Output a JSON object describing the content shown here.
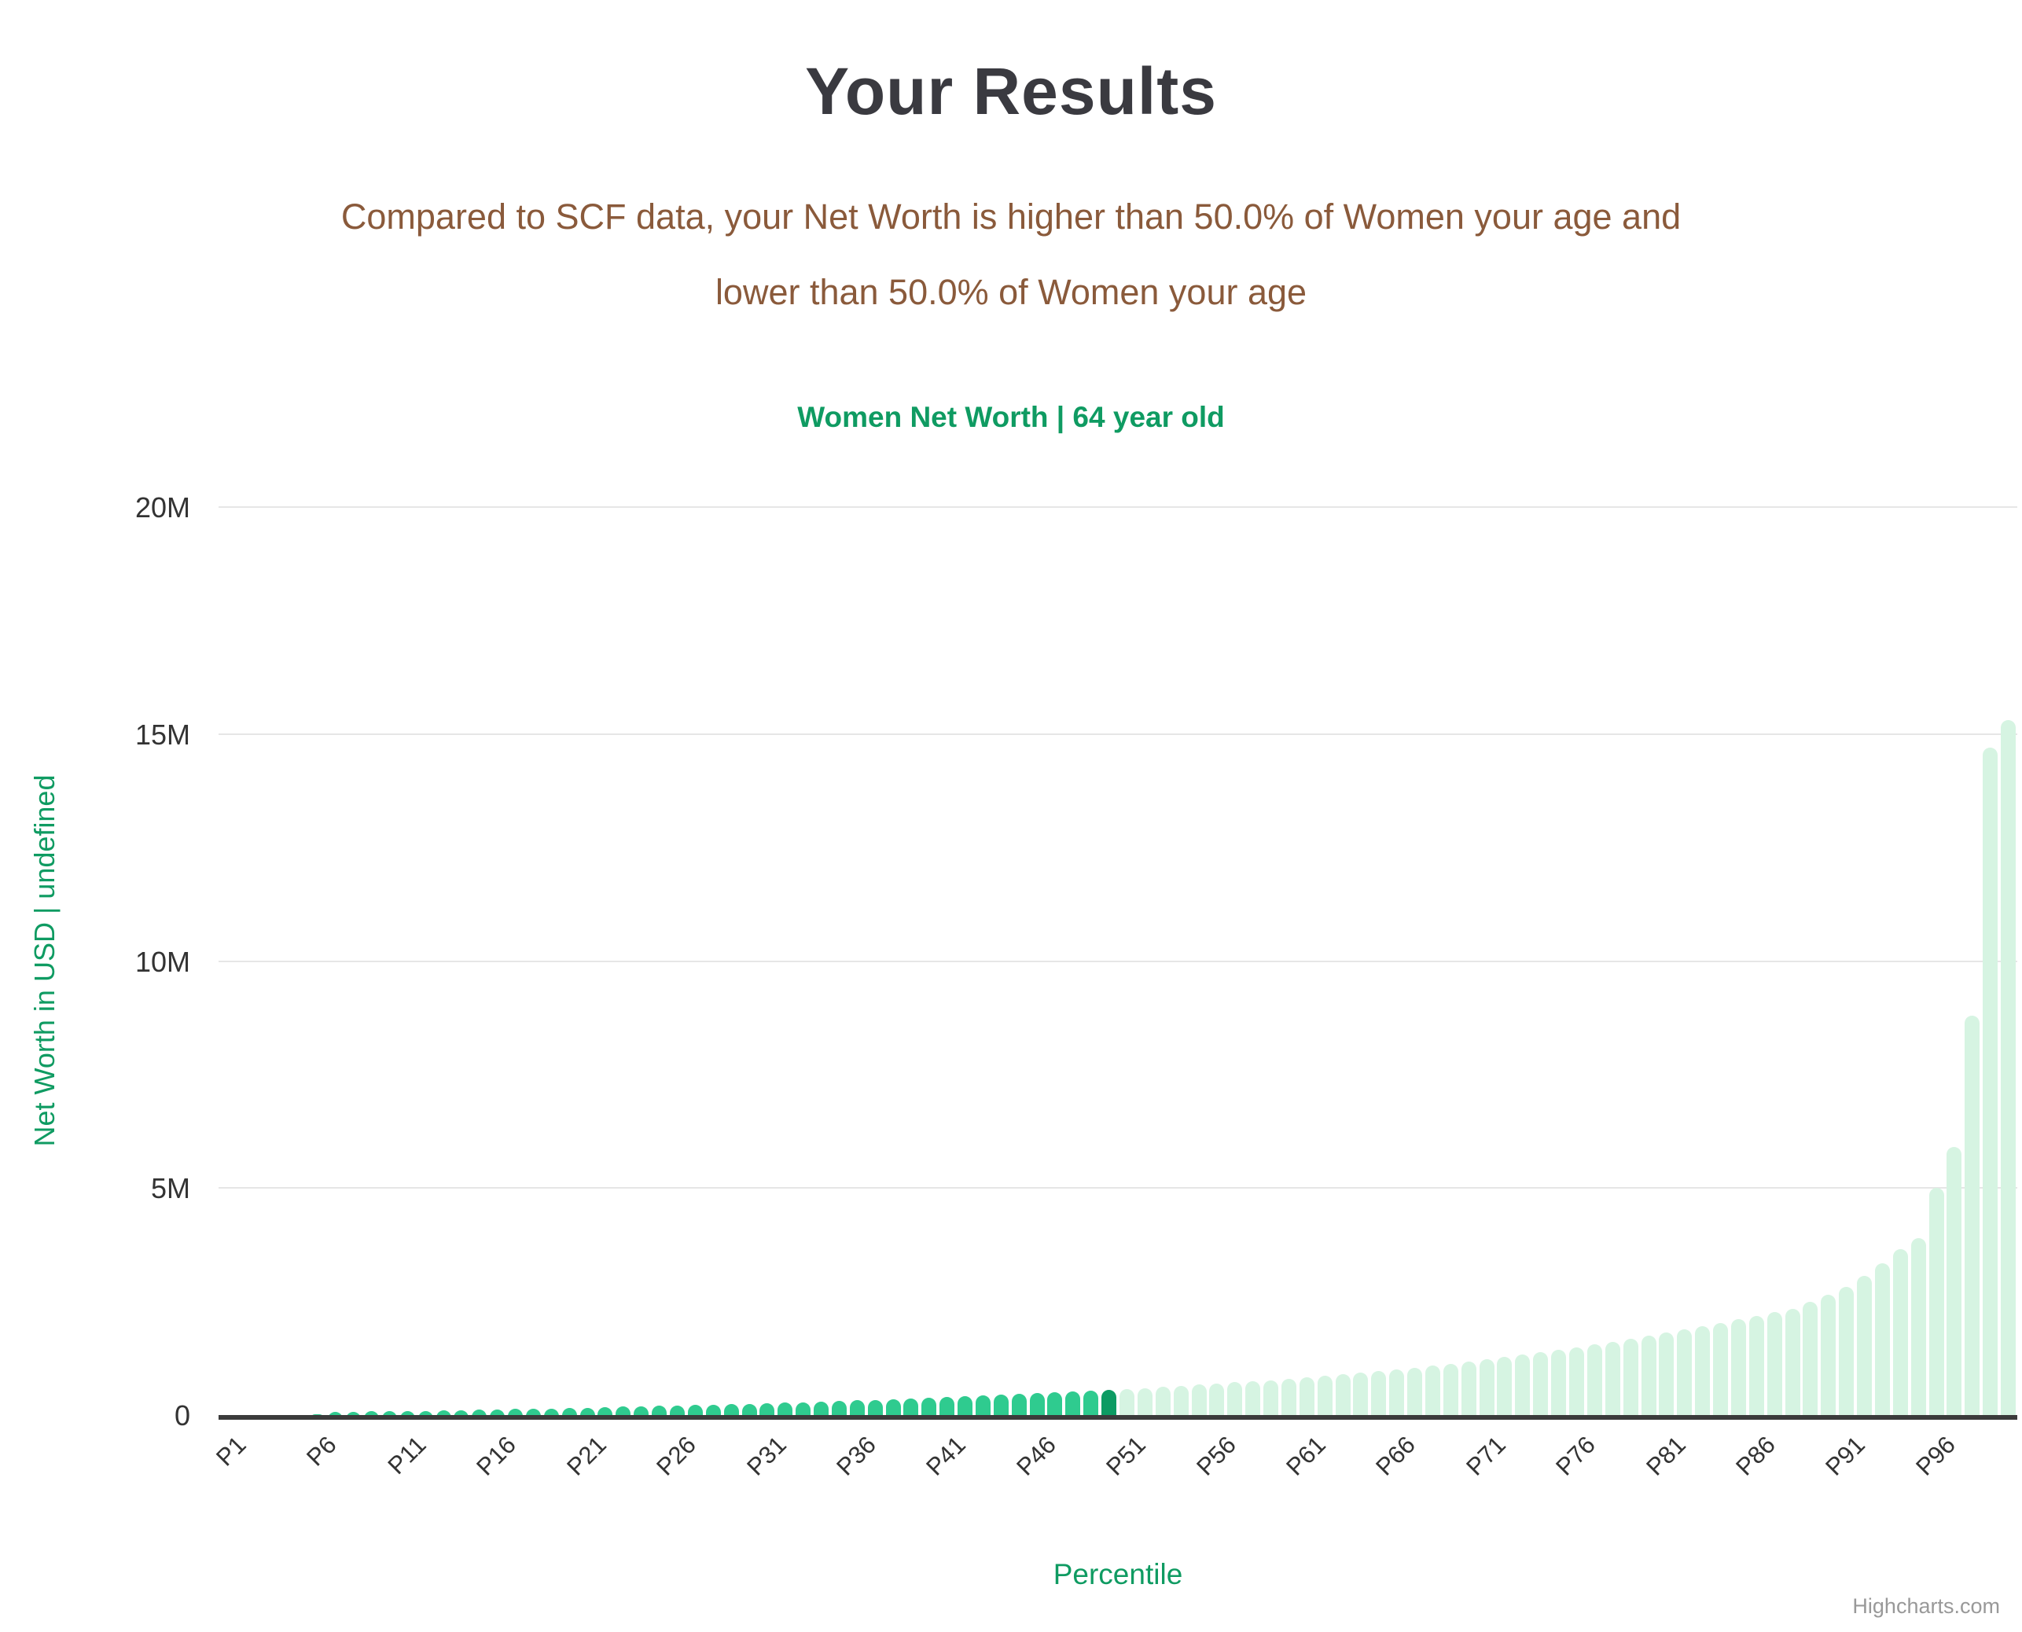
{
  "page": {
    "title": "Your Results",
    "subtitle_lines": [
      "Compared to SCF data, your Net Worth is higher than 50.0% of Women your age and",
      "lower than 50.0% of Women your age"
    ]
  },
  "chart": {
    "credits": "Highcharts.com"
  },
  "chart_data": {
    "type": "bar",
    "title": "Women Net Worth | 64 year old",
    "xlabel": "Percentile",
    "ylabel": "Net Worth in USD | undefined",
    "ylim": [
      0,
      20000000
    ],
    "grid": true,
    "legend": false,
    "yticks": [
      {
        "label": "0",
        "value": 0
      },
      {
        "label": "5M",
        "value": 5000000
      },
      {
        "label": "10M",
        "value": 10000000
      },
      {
        "label": "15M",
        "value": 15000000
      },
      {
        "label": "20M",
        "value": 20000000
      }
    ],
    "x_tick_labels": [
      "P1",
      "P6",
      "P11",
      "P16",
      "P21",
      "P26",
      "P31",
      "P36",
      "P41",
      "P46",
      "P51",
      "P56",
      "P61",
      "P66",
      "P71",
      "P76",
      "P81",
      "P86",
      "P91",
      "P96"
    ],
    "x_tick_step": 5,
    "category_prefix": "P",
    "values": [
      0,
      0,
      0,
      0,
      0,
      10000,
      70000,
      75000,
      80000,
      85000,
      90000,
      95000,
      100000,
      108000,
      116000,
      124000,
      132000,
      140000,
      148000,
      156000,
      165000,
      174000,
      183000,
      192000,
      201000,
      210000,
      220000,
      230000,
      240000,
      250000,
      262000,
      274000,
      286000,
      298000,
      310000,
      322000,
      336000,
      350000,
      364000,
      380000,
      396000,
      412000,
      428000,
      444000,
      460000,
      478000,
      496000,
      515000,
      535000,
      555000,
      575000,
      596000,
      618000,
      642000,
      668000,
      695000,
      722000,
      750000,
      770000,
      800000,
      830000,
      862000,
      895000,
      930000,
      966000,
      1004000,
      1044000,
      1086000,
      1130000,
      1176000,
      1224000,
      1274000,
      1326000,
      1380000,
      1436000,
      1494000,
      1554000,
      1616000,
      1680000,
      1746000,
      1814000,
      1884000,
      1956000,
      2030000,
      2106000,
      2184000,
      2264000,
      2346000,
      2500000,
      2650000,
      2820000,
      3060000,
      3350000,
      3650000,
      3900000,
      5000000,
      5900000,
      8800000,
      14700000,
      15300000
    ],
    "highlight_index": 49,
    "colors": {
      "below_median_bar": "#2fcb8f",
      "median_bar": "#0d9b63",
      "above_median_bar": "#d6f4e2",
      "axis_line": "#3b3b3b",
      "gridline": "#e6e6e6",
      "tick_label": "#333333",
      "axis_title": "#0f9b62",
      "chart_title": "#0f9b62",
      "page_title": "#3a3a40",
      "subtitle": "#8a5a3b",
      "credits": "#999999"
    }
  }
}
